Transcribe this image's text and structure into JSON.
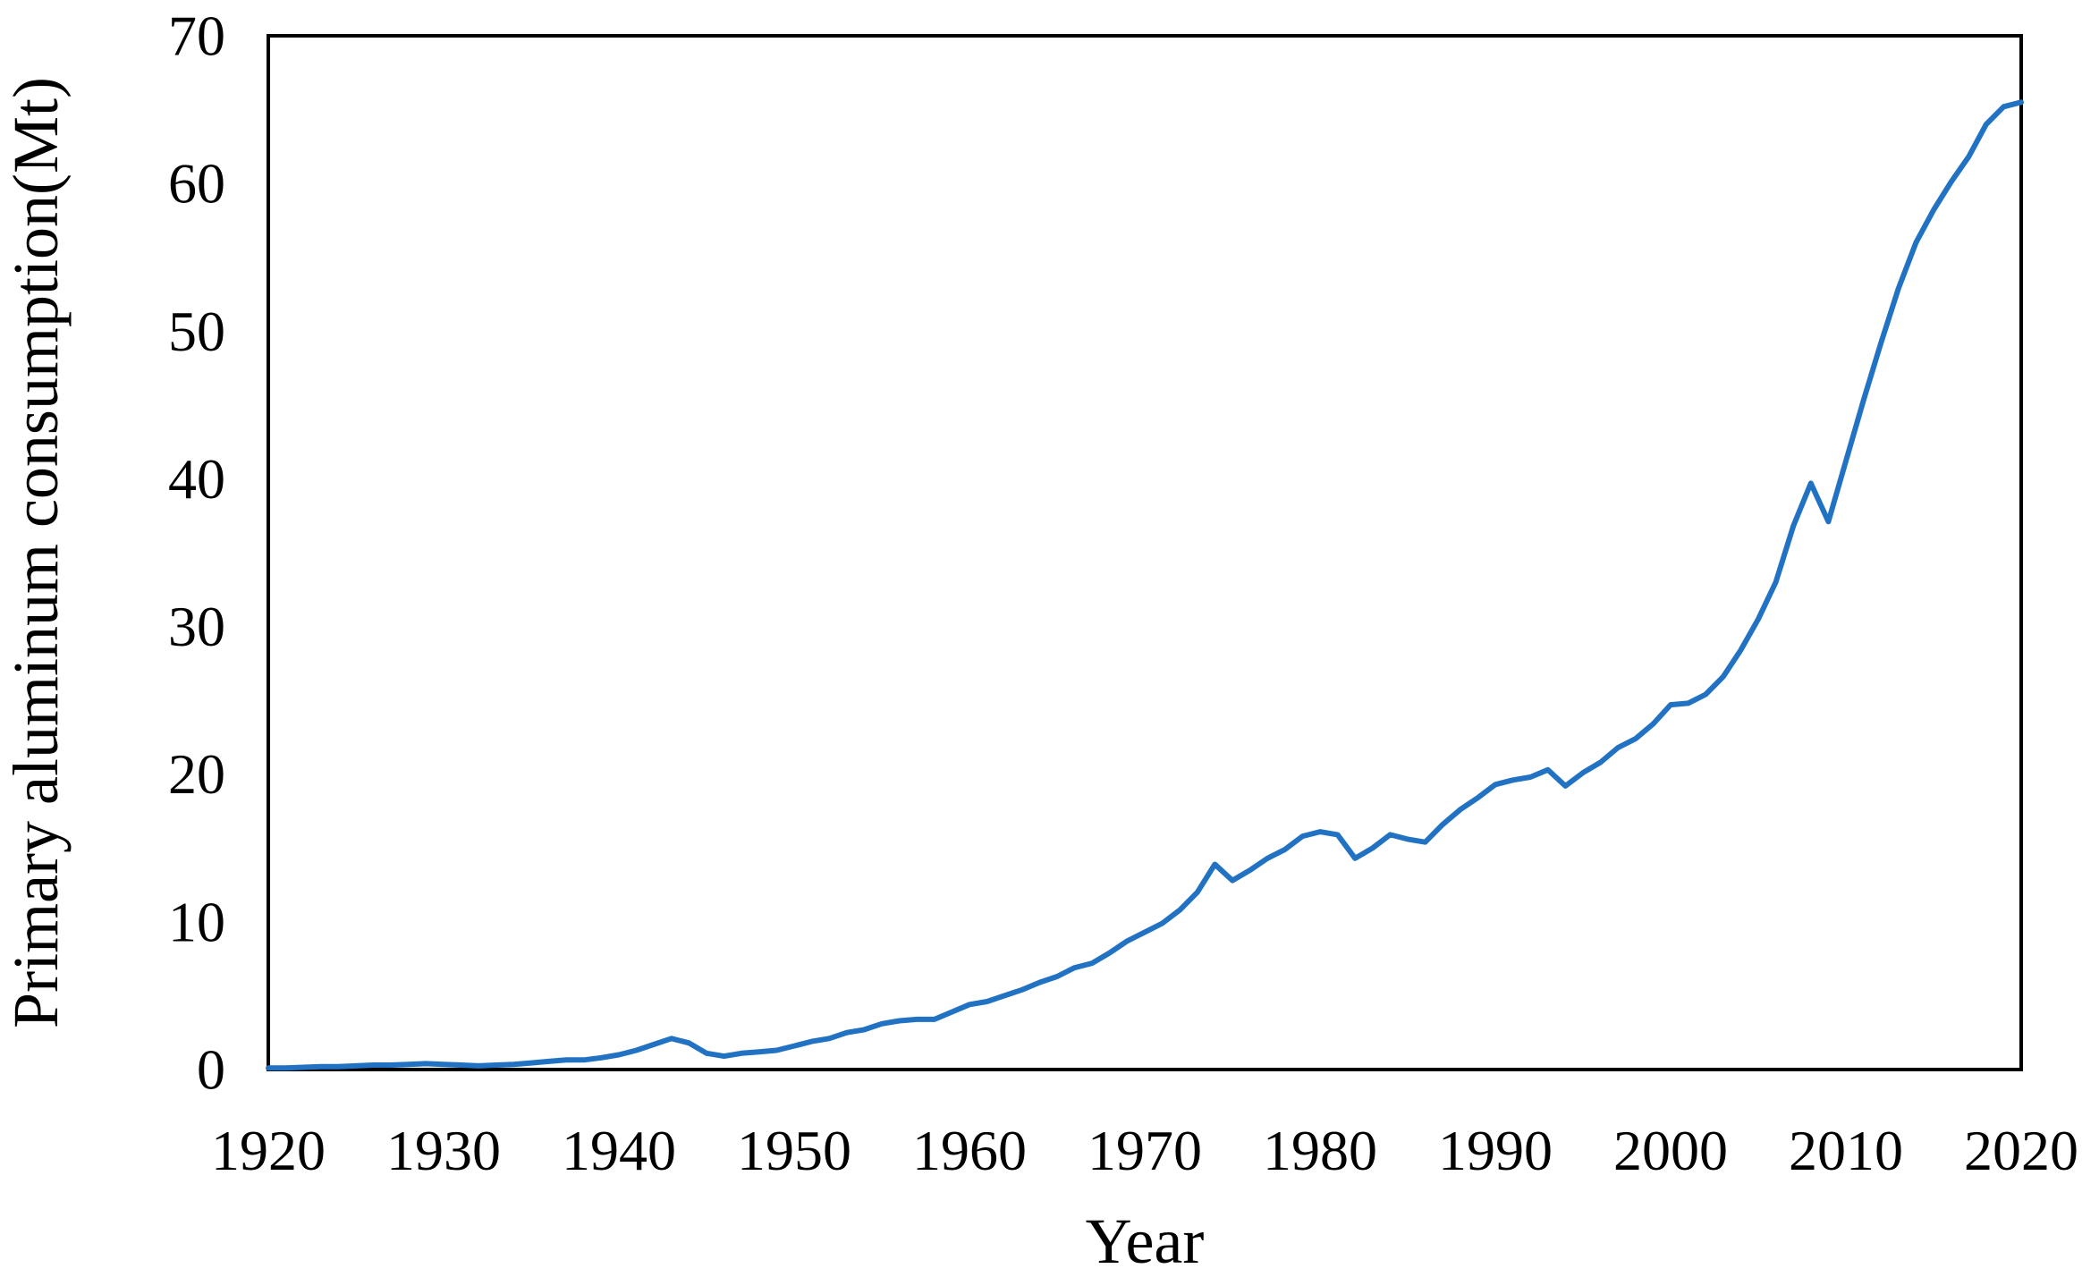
{
  "page": {
    "background": "#FFFFFF"
  },
  "chart_data": {
    "type": "line",
    "title": "",
    "xlabel": "Year",
    "ylabel": "Primary aluminum consumption(Mt)",
    "xlim": [
      1920,
      2020
    ],
    "ylim": [
      0,
      70
    ],
    "x_ticks": [
      1920,
      1930,
      1940,
      1950,
      1960,
      1970,
      1980,
      1990,
      2000,
      2010,
      2020
    ],
    "y_ticks": [
      0,
      10,
      20,
      30,
      40,
      50,
      60,
      70
    ],
    "grid": false,
    "legend": "none",
    "axis_color": "#000000",
    "line_color": "#2272C4",
    "line_width": 6,
    "series": [
      {
        "name": "Primary aluminum consumption (Mt)",
        "x": [
          1920,
          1921,
          1922,
          1923,
          1924,
          1925,
          1926,
          1927,
          1928,
          1929,
          1930,
          1931,
          1932,
          1933,
          1934,
          1935,
          1936,
          1937,
          1938,
          1939,
          1940,
          1941,
          1942,
          1943,
          1944,
          1945,
          1946,
          1947,
          1948,
          1949,
          1950,
          1951,
          1952,
          1953,
          1954,
          1955,
          1956,
          1957,
          1958,
          1959,
          1960,
          1961,
          1962,
          1963,
          1964,
          1965,
          1966,
          1967,
          1968,
          1969,
          1970,
          1971,
          1972,
          1973,
          1974,
          1975,
          1976,
          1977,
          1978,
          1979,
          1980,
          1981,
          1982,
          1983,
          1984,
          1985,
          1986,
          1987,
          1988,
          1989,
          1990,
          1991,
          1992,
          1993,
          1994,
          1995,
          1996,
          1997,
          1998,
          1999,
          2000,
          2001,
          2002,
          2003,
          2004,
          2005,
          2006,
          2007,
          2008,
          2009,
          2010,
          2011,
          2012,
          2013,
          2014,
          2015,
          2016,
          2017,
          2018,
          2019,
          2020
        ],
        "values": [
          0.1,
          0.1,
          0.15,
          0.2,
          0.2,
          0.25,
          0.3,
          0.3,
          0.35,
          0.4,
          0.35,
          0.3,
          0.25,
          0.3,
          0.35,
          0.45,
          0.55,
          0.65,
          0.65,
          0.8,
          1.0,
          1.3,
          1.7,
          2.1,
          1.8,
          1.1,
          0.9,
          1.1,
          1.2,
          1.3,
          1.6,
          1.9,
          2.1,
          2.5,
          2.7,
          3.1,
          3.3,
          3.4,
          3.4,
          3.9,
          4.4,
          4.6,
          5.0,
          5.4,
          5.9,
          6.3,
          6.9,
          7.2,
          7.9,
          8.7,
          9.3,
          9.9,
          10.8,
          12.0,
          13.9,
          12.8,
          13.5,
          14.3,
          14.9,
          15.8,
          16.1,
          15.9,
          14.3,
          15.0,
          15.9,
          15.6,
          15.4,
          16.6,
          17.6,
          18.4,
          19.3,
          19.6,
          19.8,
          20.3,
          19.2,
          20.1,
          20.8,
          21.8,
          22.4,
          23.4,
          24.7,
          24.8,
          25.4,
          26.6,
          28.4,
          30.5,
          33.0,
          36.8,
          39.7,
          37.1,
          41.2,
          45.3,
          49.2,
          52.9,
          56.0,
          58.2,
          60.1,
          61.8,
          64.0,
          65.2,
          65.5
        ]
      }
    ]
  }
}
